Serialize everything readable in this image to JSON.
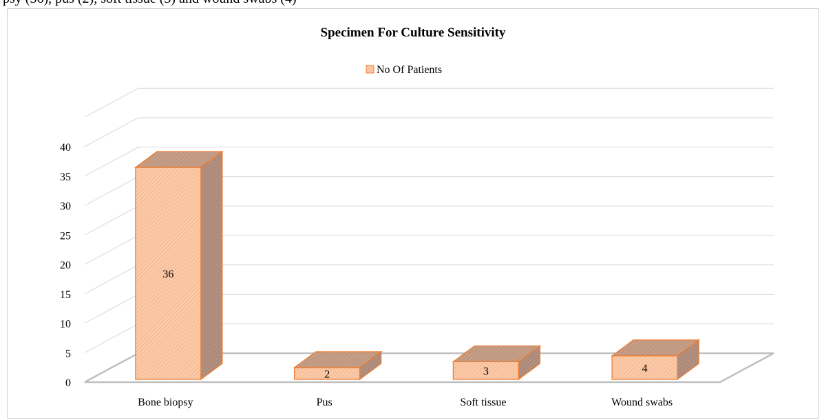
{
  "page": {
    "top_text_fragment": "psy (36), pus (2), soft tissue (3) and wound swabs (4)"
  },
  "colors": {
    "bar_front": "#fbcaa8",
    "bar_side": "#b39080",
    "bar_top": "#c79e86",
    "bar_outline": "#ed7d31",
    "grid": "#d9d9d9",
    "floor": "#bfbfbf"
  },
  "chart_data": {
    "type": "bar",
    "title": "Specimen For Culture Sensitivity",
    "categories": [
      "Bone biopsy",
      "Pus",
      "Soft tissue",
      "Wound swabs"
    ],
    "series": [
      {
        "name": "No Of Patients",
        "values": [
          36,
          2,
          3,
          4
        ]
      }
    ],
    "data_labels": [
      "36",
      "2",
      "3",
      "4"
    ],
    "y_ticks": [
      "0",
      "5",
      "10",
      "15",
      "20",
      "25",
      "30",
      "35",
      "40"
    ],
    "ylim": [
      0,
      40
    ],
    "grid": true,
    "legend_position": "top",
    "style": "3d-column"
  }
}
